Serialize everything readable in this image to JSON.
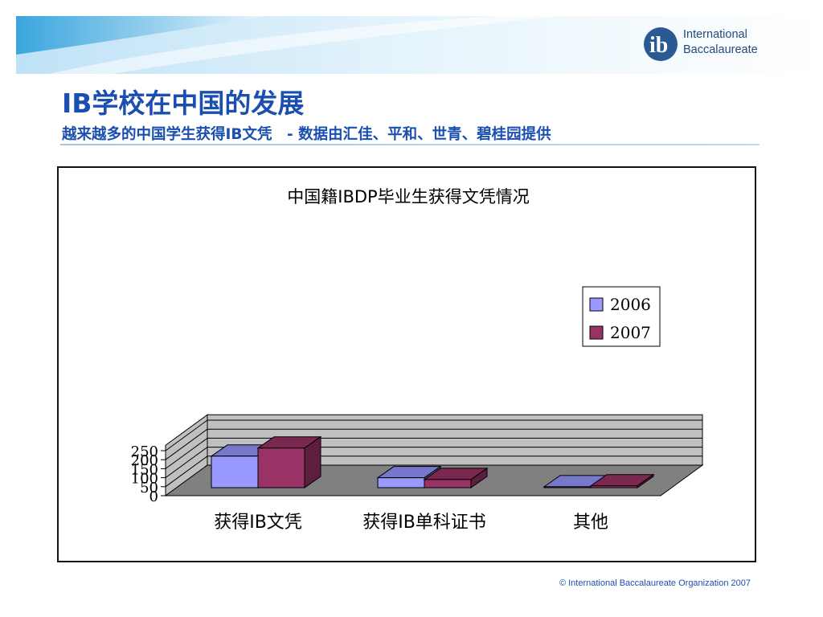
{
  "slide": {
    "title": "IB学校在中国的发展",
    "subtitle": "越来越多的中国学生获得IB文凭　- 数据由汇佳、平和、世青、碧桂园提供",
    "footer": "© International Baccalaureate Organization 2007",
    "logo": {
      "line1": "International",
      "line2": "Baccalaureate"
    }
  },
  "colors": {
    "brand_blue": "#1a4fb0",
    "series_2006": "#9999ff",
    "series_2007": "#993366",
    "wall": "#c0c0c0",
    "floor": "#808080"
  },
  "chart_data": {
    "type": "bar",
    "title": "中国籍IBDP毕业生获得文凭情况",
    "categories": [
      "获得IB文凭",
      "获得IB单科证书",
      "其他"
    ],
    "series": [
      {
        "name": "2006",
        "values": [
          175,
          55,
          5
        ]
      },
      {
        "name": "2007",
        "values": [
          220,
          45,
          10
        ]
      }
    ],
    "yticks": [
      "0",
      "50",
      "100",
      "150",
      "200",
      "250"
    ],
    "ylim": [
      0,
      250
    ],
    "grid": true,
    "legend": "right",
    "three_d": true
  }
}
